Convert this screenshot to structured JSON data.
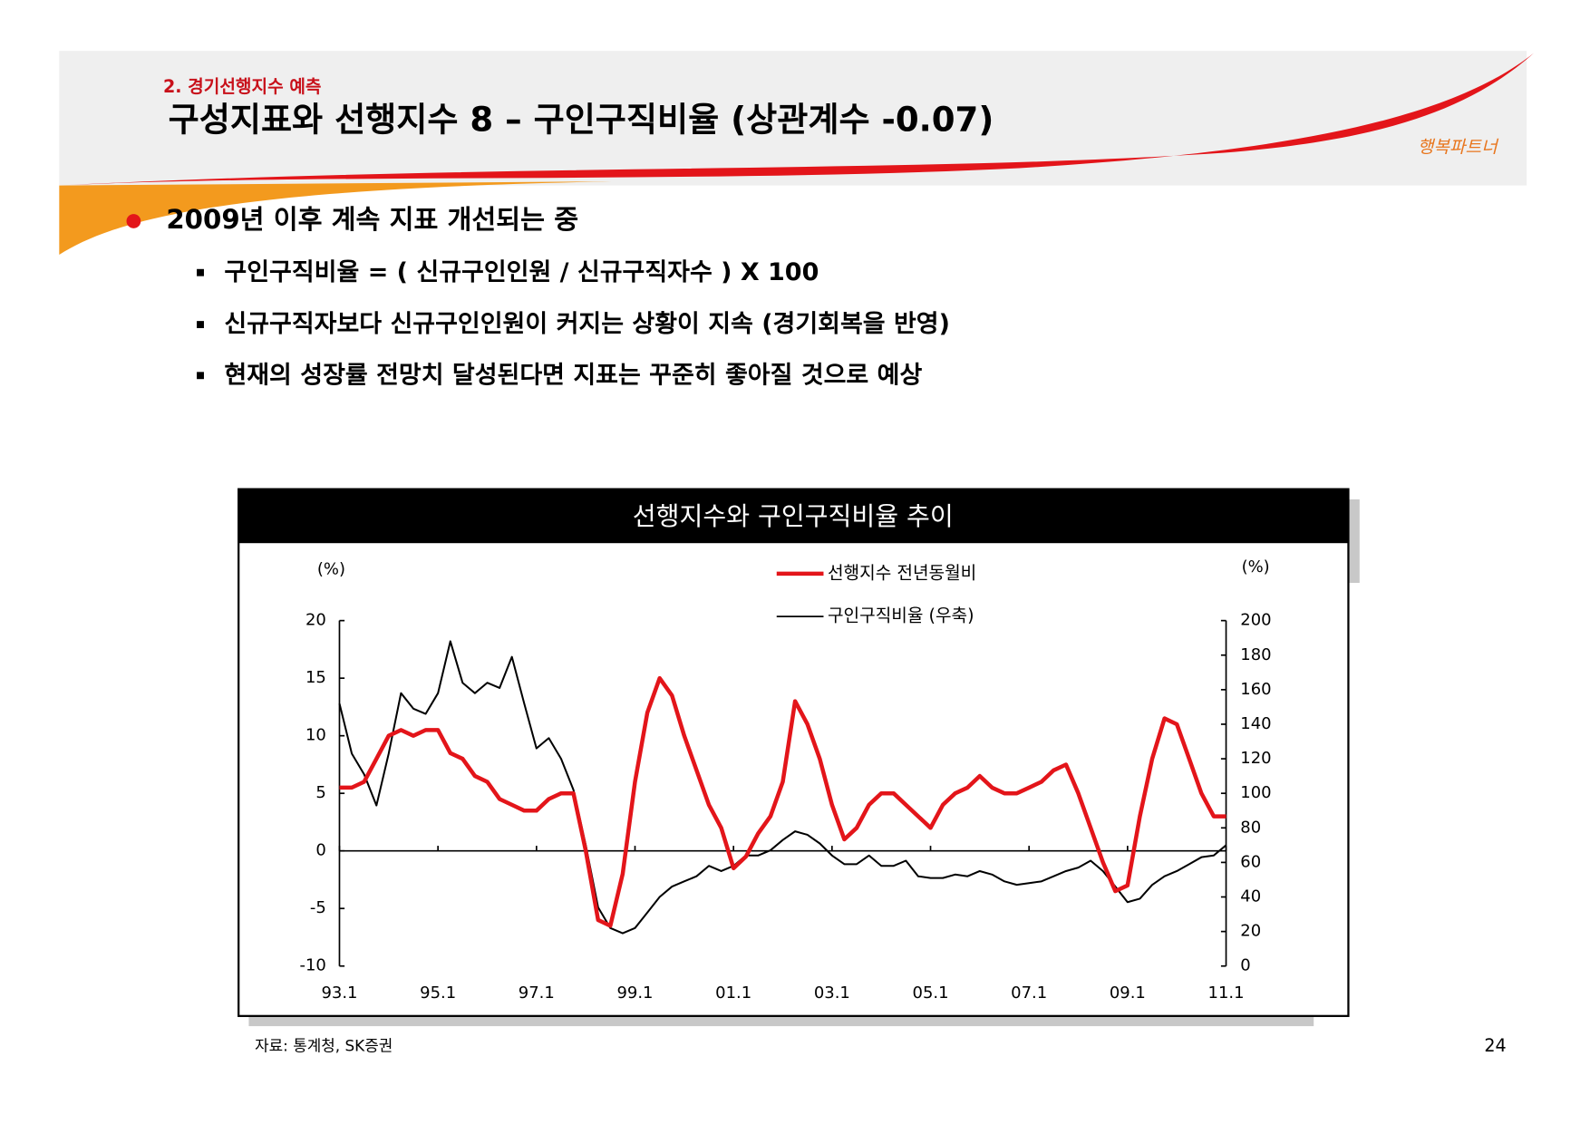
{
  "header": {
    "section": "2. 경기선행지수 예측",
    "title": "구성지표와 선행지수 8 – 구인구직비율 (상관계수 -0.07)",
    "logo": "행복파트너"
  },
  "bullets": {
    "main": "2009년 이후 계속 지표 개선되는 중",
    "items": [
      "구인구직비율 = ( 신규구인인원 /  신규구직자수 ) X 100",
      "신규구직자보다 신규구인인원이 커지는 상황이 지속 (경기회복을 반영)",
      "현재의 성장률 전망치 달성된다면 지표는 꾸준히 좋아질 것으로 예상"
    ]
  },
  "chart_data": {
    "type": "line",
    "title": "선행지수와 구인구직비율 추이",
    "ylabel": "(%)",
    "y2label": "(%)",
    "categories": [
      "93.1",
      null,
      null,
      null,
      null,
      null,
      null,
      null,
      "95.1",
      null,
      null,
      null,
      null,
      null,
      null,
      null,
      "97.1",
      null,
      null,
      null,
      null,
      null,
      null,
      null,
      "99.1",
      null,
      null,
      null,
      null,
      null,
      null,
      null,
      "01.1",
      null,
      null,
      null,
      null,
      null,
      null,
      null,
      "03.1",
      null,
      null,
      null,
      null,
      null,
      null,
      null,
      "05.1",
      null,
      null,
      null,
      null,
      null,
      null,
      null,
      "07.1",
      null,
      null,
      null,
      null,
      null,
      null,
      null,
      "09.1",
      null,
      null,
      null,
      null,
      null,
      null,
      null,
      "11.1"
    ],
    "series": [
      {
        "name": "선행지수 전년동월비",
        "color": "#e3151a",
        "axis": "y",
        "values": [
          5.5,
          5.5,
          6,
          8,
          10,
          10.5,
          10,
          10.5,
          10.5,
          8.5,
          8,
          6.5,
          6,
          4.5,
          4,
          3.5,
          3.5,
          4.5,
          5,
          5,
          0,
          -6,
          -6.5,
          -2,
          6,
          12,
          15,
          13.5,
          10,
          7,
          4,
          2,
          -1.5,
          -0.5,
          1.5,
          3,
          6,
          13,
          11,
          8,
          4,
          1,
          2,
          4,
          5,
          5,
          4,
          3,
          2,
          4,
          5,
          5.5,
          6.5,
          5.5,
          5,
          5,
          5.5,
          6,
          7,
          7.5,
          5,
          2,
          -1,
          -3.5,
          -3,
          3,
          8,
          11.5,
          11,
          8,
          5,
          3,
          3
        ]
      },
      {
        "name": "구인구직비율 (우축)",
        "color": "#000000",
        "axis": "y2",
        "values": [
          152,
          123,
          111,
          93,
          123,
          158,
          149,
          146,
          158,
          188,
          164,
          158,
          164,
          161,
          179,
          152,
          126,
          132,
          120,
          102,
          70,
          34,
          22,
          19,
          22,
          31,
          40,
          46,
          49,
          52,
          58,
          55,
          58,
          64,
          64,
          67,
          73,
          78,
          76,
          71,
          64,
          59,
          59,
          64,
          58,
          58,
          61,
          52,
          51,
          51,
          53,
          52,
          55,
          53,
          49,
          47,
          48,
          49,
          52,
          55,
          57,
          61,
          55,
          46,
          37,
          39,
          47,
          52,
          55,
          59,
          63,
          64,
          70
        ]
      }
    ],
    "ylim": [
      -10,
      20
    ],
    "yticks": [
      -10,
      -5,
      0,
      5,
      10,
      15,
      20
    ],
    "y2lim": [
      0,
      200
    ],
    "y2ticks": [
      0,
      20,
      40,
      60,
      80,
      100,
      120,
      140,
      160,
      180,
      200
    ]
  },
  "source": "자료: 통계청, SK증권",
  "page_number": "24"
}
